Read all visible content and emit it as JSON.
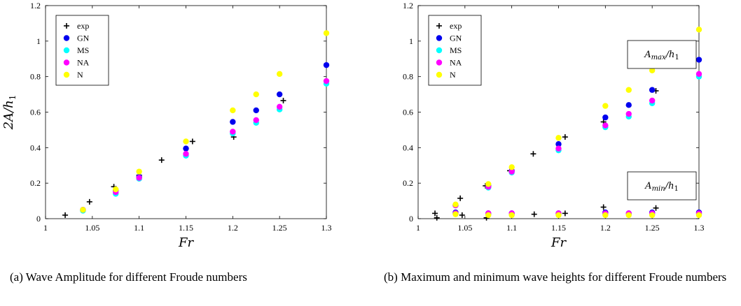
{
  "chart_data": [
    {
      "type": "scatter",
      "caption": "(a) Wave Amplitude for different Froude numbers",
      "xlabel": "Fr",
      "ylabel": "2A/h",
      "ylabel_sub": "1",
      "xlim": [
        1,
        1.3
      ],
      "ylim": [
        0,
        1.2
      ],
      "xticks": [
        "1",
        "1.05",
        "1.1",
        "1.15",
        "1.2",
        "1.25",
        "1.3"
      ],
      "yticks": [
        "0",
        "0.2",
        "0.4",
        "0.6",
        "0.8",
        "1",
        "1.2"
      ],
      "grid": false,
      "legend_position": "top-left",
      "series": [
        {
          "name": "exp",
          "marker": "plus",
          "color": "#000000",
          "x": [
            1.021,
            1.047,
            1.073,
            1.1,
            1.124,
            1.157,
            1.201,
            1.254
          ],
          "y": [
            0.02,
            0.095,
            0.18,
            0.245,
            0.33,
            0.435,
            0.46,
            0.665
          ]
        },
        {
          "name": "GN",
          "marker": "dot",
          "color": "#0000ee",
          "x": [
            1.04,
            1.075,
            1.1,
            1.15,
            1.2,
            1.225,
            1.25,
            1.3
          ],
          "y": [
            0.05,
            0.16,
            0.235,
            0.395,
            0.545,
            0.61,
            0.7,
            0.865
          ]
        },
        {
          "name": "MS",
          "marker": "dot",
          "color": "#00ffff",
          "x": [
            1.04,
            1.075,
            1.1,
            1.15,
            1.2,
            1.225,
            1.25,
            1.3
          ],
          "y": [
            0.045,
            0.14,
            0.225,
            0.355,
            0.48,
            0.54,
            0.615,
            0.76
          ]
        },
        {
          "name": "NA",
          "marker": "dot",
          "color": "#ff00ff",
          "x": [
            1.04,
            1.075,
            1.1,
            1.15,
            1.2,
            1.225,
            1.25,
            1.3
          ],
          "y": [
            0.05,
            0.15,
            0.23,
            0.365,
            0.49,
            0.555,
            0.63,
            0.775
          ]
        },
        {
          "name": "N",
          "marker": "dot",
          "color": "#ffff00",
          "x": [
            1.04,
            1.075,
            1.1,
            1.15,
            1.2,
            1.225,
            1.25,
            1.3
          ],
          "y": [
            0.05,
            0.165,
            0.265,
            0.435,
            0.61,
            0.7,
            0.815,
            1.045
          ]
        }
      ]
    },
    {
      "type": "scatter",
      "caption": "(b) Maximum and minimum wave heights for different Froude numbers",
      "xlabel": "Fr",
      "xlim": [
        1,
        1.3
      ],
      "ylim": [
        0,
        1.2
      ],
      "xticks": [
        "1",
        "1.05",
        "1.1",
        "1.15",
        "1.2",
        "1.25",
        "1.3"
      ],
      "yticks": [
        "0",
        "0.2",
        "0.4",
        "0.6",
        "0.8",
        "1",
        "1.2"
      ],
      "grid": false,
      "legend_position": "top-left",
      "annotations": [
        {
          "text": "A",
          "sub": "max",
          "suffix": "/h",
          "sub2": "1",
          "position": "upper-right"
        },
        {
          "text": "A",
          "sub": "min",
          "suffix": "/h",
          "sub2": "1",
          "position": "lower-right"
        }
      ],
      "series": [
        {
          "name": "exp",
          "marker": "plus",
          "color": "#000000",
          "x": [
            1.018,
            1.045,
            1.072,
            1.098,
            1.123,
            1.157,
            1.198,
            1.254,
            1.02,
            1.047,
            1.073,
            1.124,
            1.157,
            1.198,
            1.254
          ],
          "y": [
            0.03,
            0.115,
            0.185,
            0.27,
            0.365,
            0.46,
            0.545,
            0.72,
            0.005,
            0.02,
            0.005,
            0.025,
            0.03,
            0.065,
            0.06
          ]
        },
        {
          "name": "GN",
          "marker": "dot",
          "color": "#0000ee",
          "x": [
            1.04,
            1.075,
            1.1,
            1.15,
            1.2,
            1.225,
            1.25,
            1.3,
            1.04,
            1.075,
            1.1,
            1.15,
            1.2,
            1.225,
            1.25,
            1.3
          ],
          "y": [
            0.075,
            0.185,
            0.27,
            0.42,
            0.57,
            0.64,
            0.725,
            0.895,
            0.035,
            0.03,
            0.03,
            0.03,
            0.035,
            0.03,
            0.035,
            0.035
          ]
        },
        {
          "name": "MS",
          "marker": "dot",
          "color": "#00ffff",
          "x": [
            1.04,
            1.075,
            1.1,
            1.15,
            1.2,
            1.225,
            1.25,
            1.3,
            1.04,
            1.075,
            1.1,
            1.15,
            1.2,
            1.225,
            1.25,
            1.3
          ],
          "y": [
            0.075,
            0.175,
            0.26,
            0.385,
            0.515,
            0.575,
            0.65,
            0.8,
            0.03,
            0.025,
            0.025,
            0.025,
            0.025,
            0.025,
            0.025,
            0.025
          ]
        },
        {
          "name": "NA",
          "marker": "dot",
          "color": "#ff00ff",
          "x": [
            1.04,
            1.075,
            1.1,
            1.15,
            1.2,
            1.225,
            1.25,
            1.3,
            1.04,
            1.075,
            1.1,
            1.15,
            1.2,
            1.225,
            1.25,
            1.3
          ],
          "y": [
            0.075,
            0.18,
            0.265,
            0.395,
            0.525,
            0.59,
            0.665,
            0.815,
            0.03,
            0.03,
            0.03,
            0.03,
            0.03,
            0.03,
            0.03,
            0.03
          ]
        },
        {
          "name": "N",
          "marker": "dot",
          "color": "#ffff00",
          "x": [
            1.04,
            1.075,
            1.1,
            1.15,
            1.2,
            1.225,
            1.25,
            1.3,
            1.04,
            1.075,
            1.1,
            1.15,
            1.2,
            1.225,
            1.25,
            1.3
          ],
          "y": [
            0.08,
            0.195,
            0.29,
            0.455,
            0.635,
            0.725,
            0.835,
            1.065,
            0.025,
            0.02,
            0.02,
            0.02,
            0.02,
            0.02,
            0.02,
            0.02
          ]
        }
      ]
    }
  ]
}
